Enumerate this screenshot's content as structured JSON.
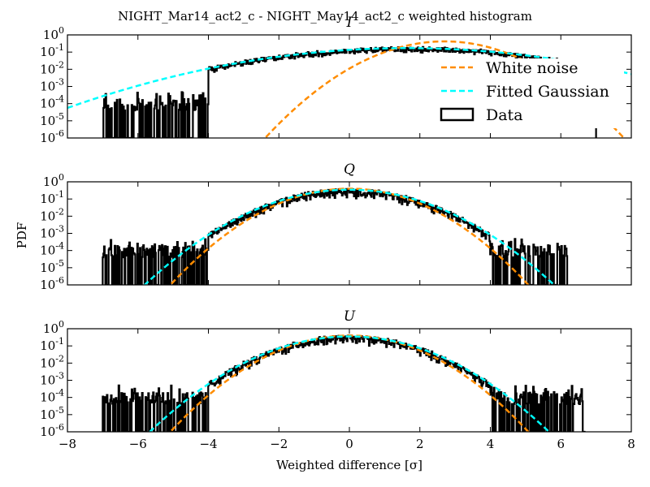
{
  "chart_data": [
    {
      "type": "line",
      "panel": "I",
      "title": "I",
      "x_scale": "linear",
      "y_scale": "log",
      "xlim": [
        -8,
        8
      ],
      "ylim": [
        1e-06,
        1
      ],
      "yticks": [
        1e-06,
        1e-05,
        0.0001,
        0.001,
        0.01,
        0.1,
        1
      ],
      "ytick_labels": [
        {
          "base": "10",
          "exp": "-6"
        },
        {
          "base": "10",
          "exp": "-5"
        },
        {
          "base": "10",
          "exp": "-4"
        },
        {
          "base": "10",
          "exp": "-3"
        },
        {
          "base": "10",
          "exp": "-2"
        },
        {
          "base": "10",
          "exp": "-1"
        },
        {
          "base": "10",
          "exp": "0"
        }
      ],
      "xticks": [
        -8,
        -6,
        -4,
        -2,
        0,
        2,
        4,
        6,
        8
      ],
      "xtick_labels": [],
      "legend": {
        "position": "right",
        "entries": [
          {
            "label": "White noise",
            "series": "white_noise"
          },
          {
            "label": "Fitted Gaussian",
            "series": "fitted_gaussian"
          },
          {
            "label": "Data",
            "series": "data"
          }
        ]
      },
      "series": [
        {
          "key": "white_noise",
          "name": "White noise",
          "style": "dashed",
          "color": "#ff8c00",
          "model": {
            "mu": 2.7,
            "sigma": 1.0,
            "amp": 0.42
          }
        },
        {
          "key": "fitted_gaussian",
          "name": "Fitted Gaussian",
          "style": "dashed",
          "color": "#00ffff",
          "model": {
            "mu": 1.65,
            "sigma": 2.41,
            "amp": 0.17
          }
        },
        {
          "key": "data",
          "name": "Data",
          "style": "step",
          "color": "#000000",
          "range": [
            -7.0,
            7.0
          ],
          "sparse_below": -4.0,
          "min_fraction": 0.5
        }
      ]
    },
    {
      "type": "line",
      "panel": "Q",
      "title": "Q",
      "x_scale": "linear",
      "y_scale": "log",
      "xlim": [
        -8,
        8
      ],
      "ylim": [
        1e-06,
        1
      ],
      "yticks": [
        1e-06,
        1e-05,
        0.0001,
        0.001,
        0.01,
        0.1,
        1
      ],
      "ytick_labels": [
        {
          "base": "10",
          "exp": "-6"
        },
        {
          "base": "10",
          "exp": "-5"
        },
        {
          "base": "10",
          "exp": "-4"
        },
        {
          "base": "10",
          "exp": "-3"
        },
        {
          "base": "10",
          "exp": "-2"
        },
        {
          "base": "10",
          "exp": "-1"
        },
        {
          "base": "10",
          "exp": "0"
        }
      ],
      "xticks": [
        -8,
        -6,
        -4,
        -2,
        0,
        2,
        4,
        6,
        8
      ],
      "xtick_labels": [],
      "series": [
        {
          "key": "white_noise",
          "name": "White noise",
          "style": "dashed",
          "color": "#ff8c00",
          "model": {
            "mu": 0.0,
            "sigma": 1.0,
            "amp": 0.399
          }
        },
        {
          "key": "fitted_gaussian",
          "name": "Fitted Gaussian",
          "style": "dashed",
          "color": "#00ffff",
          "model": {
            "mu": 0.0,
            "sigma": 1.15,
            "amp": 0.347
          }
        },
        {
          "key": "data",
          "name": "Data",
          "style": "step",
          "color": "#000000",
          "range": [
            -7.0,
            6.2
          ],
          "sparse_below": -4.0,
          "sparse_above": 4.0,
          "min_fraction": 0.3
        }
      ]
    },
    {
      "type": "line",
      "panel": "U",
      "title": "U",
      "x_scale": "linear",
      "y_scale": "log",
      "xlim": [
        -8,
        8
      ],
      "ylim": [
        1e-06,
        1
      ],
      "yticks": [
        1e-06,
        1e-05,
        0.0001,
        0.001,
        0.01,
        0.1,
        1
      ],
      "ytick_labels": [
        {
          "base": "10",
          "exp": "-6"
        },
        {
          "base": "10",
          "exp": "-5"
        },
        {
          "base": "10",
          "exp": "-4"
        },
        {
          "base": "10",
          "exp": "-3"
        },
        {
          "base": "10",
          "exp": "-2"
        },
        {
          "base": "10",
          "exp": "-1"
        },
        {
          "base": "10",
          "exp": "0"
        }
      ],
      "xticks": [
        -8,
        -6,
        -4,
        -2,
        0,
        2,
        4,
        6,
        8
      ],
      "xtick_labels": [
        "−8",
        "−6",
        "−4",
        "−2",
        "0",
        "2",
        "4",
        "6",
        "8"
      ],
      "series": [
        {
          "key": "white_noise",
          "name": "White noise",
          "style": "dashed",
          "color": "#ff8c00",
          "model": {
            "mu": 0.0,
            "sigma": 1.0,
            "amp": 0.399
          }
        },
        {
          "key": "fitted_gaussian",
          "name": "Fitted Gaussian",
          "style": "dashed",
          "color": "#00ffff",
          "model": {
            "mu": 0.0,
            "sigma": 1.12,
            "amp": 0.356
          }
        },
        {
          "key": "data",
          "name": "Data",
          "style": "step",
          "color": "#000000",
          "range": [
            -7.0,
            6.7
          ],
          "sparse_below": -4.0,
          "sparse_above": 4.0,
          "min_fraction": 0.3
        }
      ]
    }
  ],
  "figure": {
    "title": "NIGHT_Mar14_act2_c - NIGHT_May14_act2_c weighted histogram",
    "xlabel": "Weighted difference [σ]",
    "ylabel": "PDF"
  }
}
